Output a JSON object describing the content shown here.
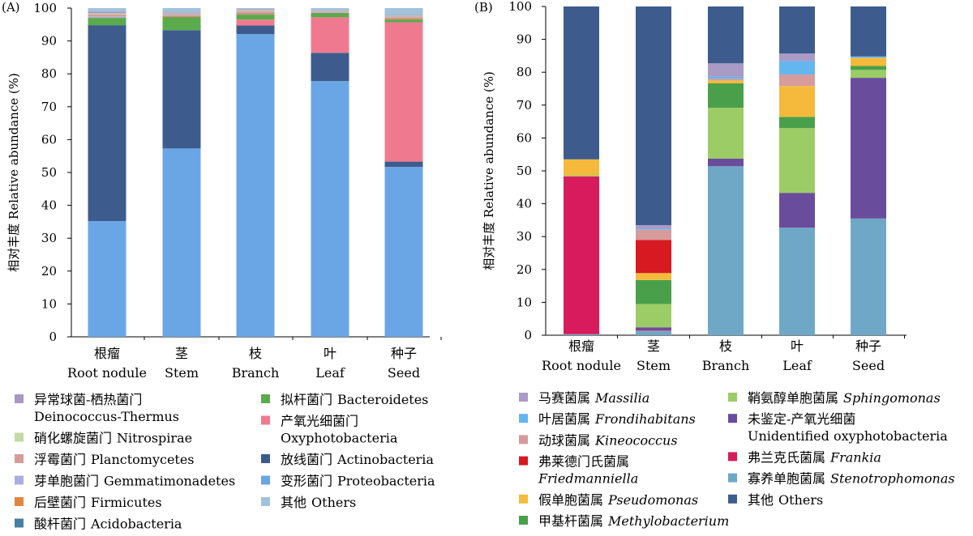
{
  "chart_data": [
    {
      "type": "bar",
      "panel_label": "(A)",
      "stacked": true,
      "ylabel": "相对丰度 Relative abundance (%)",
      "ylim": [
        0,
        100
      ],
      "yticks": [
        "0",
        "10",
        "20",
        "30",
        "40",
        "50",
        "60",
        "70",
        "80",
        "90",
        "100"
      ],
      "categories": [
        {
          "cn": "根瘤",
          "en": "Root nodule"
        },
        {
          "cn": "茎",
          "en": "Stem"
        },
        {
          "cn": "枝",
          "en": "Branch"
        },
        {
          "cn": "叶",
          "en": "Leaf"
        },
        {
          "cn": "种子",
          "en": "Seed"
        }
      ],
      "series": [
        {
          "name_cn": "变形菌门",
          "name_en": "Proteobacteria",
          "color": "#6aa6e6",
          "values": [
            35.2,
            57.3,
            92.1,
            77.8,
            51.7
          ]
        },
        {
          "name_cn": "放线菌门",
          "name_en": "Actinobacteria",
          "color": "#3d5c8d",
          "values": [
            59.6,
            36.0,
            2.6,
            8.6,
            1.6
          ]
        },
        {
          "name_cn": "产氧光细菌门",
          "name_en": "Oxyphotobacteria",
          "color": "#ef7a90",
          "values": [
            0.0,
            0.0,
            1.8,
            10.8,
            42.4
          ]
        },
        {
          "name_cn": "拟杆菌门",
          "name_en": "Bacteroidetes",
          "color": "#5aab4b",
          "values": [
            2.2,
            3.9,
            1.5,
            1.2,
            0.8
          ]
        },
        {
          "name_cn": "酸杆菌门",
          "name_en": "Acidobacteria",
          "color": "#4a7fa3",
          "values": [
            0.1,
            0.1,
            0.1,
            0.1,
            0.1
          ]
        },
        {
          "name_cn": "后壁菌门",
          "name_en": "Firmicutes",
          "color": "#e0873f",
          "values": [
            0.1,
            0.3,
            0.4,
            0.1,
            0.4
          ]
        },
        {
          "name_cn": "芽单胞菌门",
          "name_en": "Gemmatimonadetes",
          "color": "#a9aee0",
          "values": [
            0.3,
            0.2,
            0.3,
            0.1,
            0.2
          ]
        },
        {
          "name_cn": "浮霉菌门",
          "name_en": "Planctomycetes",
          "color": "#d69b9b",
          "values": [
            0.6,
            0.4,
            0.4,
            0.2,
            0.3
          ]
        },
        {
          "name_cn": "硝化螺旋菌门",
          "name_en": "Nitrospirae",
          "color": "#c3d9a6",
          "values": [
            0.3,
            0.2,
            0.2,
            0.2,
            0.2
          ]
        },
        {
          "name_cn": "异常球菌-栖热菌门",
          "name_en": "Deinococcus-Thermus",
          "color": "#a69ac4",
          "values": [
            0.5,
            0.3,
            0.3,
            0.2,
            0.2
          ]
        },
        {
          "name_cn": "其他",
          "name_en": "Others",
          "color": "#a2c2dc",
          "values": [
            1.1,
            1.3,
            0.3,
            0.7,
            2.1
          ]
        }
      ],
      "legend": {
        "col1": [
          {
            "cn": "异常球菌-栖热菌门",
            "en": "Deinococcus-Thermus",
            "wrap": true,
            "color": "#a69ac4"
          },
          {
            "cn": "硝化螺旋菌门",
            "en": "Nitrospirae",
            "wrap": false,
            "color": "#c3d9a6"
          },
          {
            "cn": "浮霉菌门",
            "en": "Planctomycetes",
            "wrap": false,
            "color": "#d69b9b"
          },
          {
            "cn": "芽单胞菌门",
            "en": "Gemmatimonadetes",
            "wrap": false,
            "color": "#a9aee0"
          },
          {
            "cn": "后壁菌门",
            "en": "Firmicutes",
            "wrap": false,
            "color": "#e0873f"
          },
          {
            "cn": "酸杆菌门",
            "en": "Acidobacteria",
            "wrap": false,
            "color": "#4a7fa3"
          }
        ],
        "col2": [
          {
            "cn": "拟杆菌门",
            "en": "Bacteroidetes",
            "wrap": false,
            "color": "#5aab4b"
          },
          {
            "cn": "产氧光细菌门",
            "en": "Oxyphotobacteria",
            "wrap": true,
            "color": "#ef7a90"
          },
          {
            "cn": "放线菌门",
            "en": "Actinobacteria",
            "wrap": false,
            "color": "#3d5c8d"
          },
          {
            "cn": "变形菌门",
            "en": "Proteobacteria",
            "wrap": false,
            "color": "#6aa6e6"
          },
          {
            "cn": "其他",
            "en": "Others",
            "wrap": false,
            "color": "#a2c2dc"
          }
        ]
      }
    },
    {
      "type": "bar",
      "panel_label": "(B)",
      "stacked": true,
      "ylabel": "相对丰度 Relative abundance (%)",
      "ylim": [
        0,
        100
      ],
      "yticks": [
        "0",
        "10",
        "20",
        "30",
        "40",
        "50",
        "60",
        "70",
        "80",
        "90",
        "100"
      ],
      "categories": [
        {
          "cn": "根瘤",
          "en": "Root nodule"
        },
        {
          "cn": "茎",
          "en": "Stem"
        },
        {
          "cn": "枝",
          "en": "Branch"
        },
        {
          "cn": "叶",
          "en": "Leaf"
        },
        {
          "cn": "种子",
          "en": "Seed"
        }
      ],
      "series": [
        {
          "name_cn": "寡养单胞菌属",
          "name_en": "Stenotrophomonas",
          "color": "#6fa8c7",
          "values": [
            0.3,
            1.4,
            51.4,
            32.7,
            35.5
          ]
        },
        {
          "name_cn": "弗兰克氏菌属",
          "name_en": "Frankia",
          "color": "#d81b5c",
          "values": [
            48.0,
            0.2,
            0.0,
            0.0,
            0.0
          ]
        },
        {
          "name_cn": "未鉴定-产氧光细菌",
          "name_en": "Unidentified oxyphotobacteria",
          "color": "#6a4c9c",
          "values": [
            0.0,
            0.8,
            2.3,
            10.6,
            42.8
          ]
        },
        {
          "name_cn": "鞘氨醇单胞菌属",
          "name_en": "Sphingomonas",
          "color": "#9ccc66",
          "values": [
            0.2,
            7.1,
            15.5,
            19.7,
            2.4
          ]
        },
        {
          "name_cn": "甲基杆菌属",
          "name_en": "Methylobacterium",
          "color": "#4aa04a",
          "values": [
            0.1,
            7.3,
            7.4,
            3.4,
            1.2
          ]
        },
        {
          "name_cn": "假单胞菌属",
          "name_en": "Pseudomonas",
          "color": "#f5ba3b",
          "values": [
            4.9,
            2.1,
            0.9,
            9.4,
            2.5
          ]
        },
        {
          "name_cn": "弗莱德门氏菌属",
          "name_en": "Friedmanniella",
          "color": "#d71921",
          "values": [
            0.0,
            10.1,
            0.0,
            0.0,
            0.0
          ]
        },
        {
          "name_cn": "动球菌属",
          "name_en": "Kineococcus",
          "color": "#d69b9b",
          "values": [
            0.0,
            3.1,
            0.5,
            3.5,
            0.0
          ]
        },
        {
          "name_cn": "叶居菌属",
          "name_en": "Frondihabitans",
          "color": "#64b6ef",
          "values": [
            0.0,
            0.3,
            0.6,
            4.1,
            0.4
          ]
        },
        {
          "name_cn": "马赛菌属",
          "name_en": "Massilia",
          "color": "#a99ac6",
          "values": [
            0.0,
            1.1,
            4.1,
            2.3,
            0.0
          ]
        },
        {
          "name_cn": "其他",
          "name_en": "Others",
          "color": "#3d5c8d",
          "values": [
            46.5,
            66.5,
            17.3,
            14.3,
            15.2
          ]
        }
      ],
      "legend": {
        "col1": [
          {
            "cn": "马赛菌属",
            "en": "Massilia",
            "wrap": false,
            "italic": true,
            "color": "#a99ac6"
          },
          {
            "cn": "叶居菌属",
            "en": "Frondihabitans",
            "wrap": false,
            "italic": true,
            "color": "#64b6ef"
          },
          {
            "cn": "动球菌属",
            "en": "Kineococcus",
            "wrap": false,
            "italic": true,
            "color": "#d69b9b"
          },
          {
            "cn": "弗莱德门氏菌属",
            "en": "Friedmanniella",
            "wrap": true,
            "italic": true,
            "color": "#d71921"
          },
          {
            "cn": "假单胞菌属",
            "en": "Pseudomonas",
            "wrap": false,
            "italic": true,
            "color": "#f5ba3b"
          },
          {
            "cn": "甲基杆菌属",
            "en": "Methylobacterium",
            "wrap": false,
            "italic": true,
            "color": "#4aa04a"
          }
        ],
        "col2": [
          {
            "cn": "鞘氨醇单胞菌属",
            "en": "Sphingomonas",
            "wrap": false,
            "italic": true,
            "color": "#9ccc66"
          },
          {
            "cn": "未鉴定-产氧光细菌",
            "en": "Unidentified oxyphotobacteria",
            "wrap": true,
            "italic": false,
            "color": "#6a4c9c"
          },
          {
            "cn": "弗兰克氏菌属",
            "en": "Frankia",
            "wrap": false,
            "italic": true,
            "color": "#d81b5c"
          },
          {
            "cn": "寡养单胞菌属",
            "en": "Stenotrophomonas",
            "wrap": false,
            "italic": true,
            "color": "#6fa8c7"
          },
          {
            "cn": "其他",
            "en": "Others",
            "wrap": false,
            "italic": false,
            "color": "#3d5c8d"
          }
        ]
      }
    }
  ]
}
